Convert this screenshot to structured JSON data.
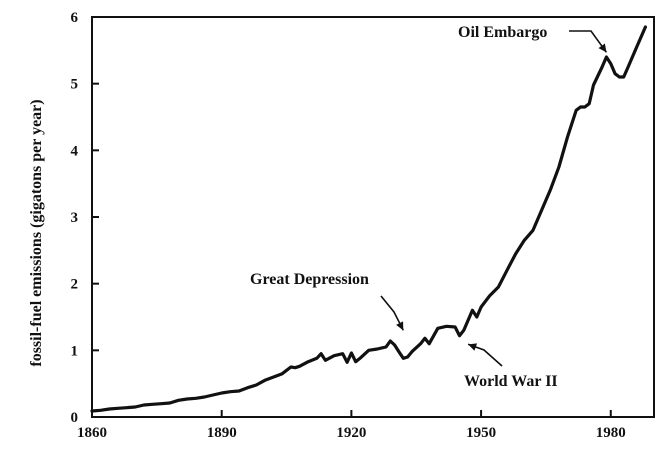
{
  "chart_data": {
    "type": "line",
    "title": "",
    "xlabel": "",
    "ylabel": "fossil-fuel emissions  (gigatons per year)",
    "xlim": [
      1860,
      1990
    ],
    "ylim": [
      0,
      6
    ],
    "xticks": [
      1860,
      1890,
      1920,
      1950,
      1980
    ],
    "yticks": [
      0,
      1,
      2,
      3,
      4,
      5,
      6
    ],
    "grid": false,
    "legend": "none",
    "series": [
      {
        "x": [
          1860,
          1862,
          1864,
          1866,
          1868,
          1870,
          1872,
          1874,
          1876,
          1878,
          1880,
          1882,
          1884,
          1886,
          1888,
          1890,
          1892,
          1894,
          1896,
          1898,
          1900,
          1902,
          1904,
          1906,
          1907,
          1908,
          1910,
          1912,
          1913,
          1914,
          1916,
          1918,
          1919,
          1920,
          1921,
          1922,
          1924,
          1926,
          1928,
          1929,
          1930,
          1931,
          1932,
          1933,
          1934,
          1936,
          1937,
          1938,
          1940,
          1942,
          1944,
          1945,
          1946,
          1948,
          1949,
          1950,
          1952,
          1954,
          1956,
          1958,
          1960,
          1962,
          1964,
          1966,
          1968,
          1970,
          1972,
          1973,
          1974,
          1975,
          1976,
          1978,
          1979,
          1980,
          1981,
          1982,
          1983,
          1984,
          1986,
          1988
        ],
        "y": [
          0.09,
          0.1,
          0.12,
          0.13,
          0.14,
          0.15,
          0.18,
          0.19,
          0.2,
          0.21,
          0.25,
          0.27,
          0.28,
          0.3,
          0.33,
          0.36,
          0.38,
          0.39,
          0.44,
          0.48,
          0.55,
          0.6,
          0.65,
          0.75,
          0.74,
          0.76,
          0.83,
          0.88,
          0.95,
          0.85,
          0.92,
          0.95,
          0.82,
          0.96,
          0.83,
          0.88,
          1.0,
          1.02,
          1.05,
          1.14,
          1.08,
          0.98,
          0.88,
          0.9,
          0.98,
          1.1,
          1.18,
          1.1,
          1.33,
          1.36,
          1.35,
          1.22,
          1.3,
          1.6,
          1.5,
          1.65,
          1.82,
          1.95,
          2.2,
          2.45,
          2.65,
          2.8,
          3.1,
          3.4,
          3.75,
          4.2,
          4.6,
          4.65,
          4.65,
          4.7,
          4.98,
          5.25,
          5.4,
          5.3,
          5.15,
          5.1,
          5.1,
          5.25,
          5.55,
          5.85
        ]
      }
    ],
    "annotations": [
      {
        "text": "Oil Embargo",
        "x": 1979,
        "y": 5.35
      },
      {
        "text": "Great Depression",
        "x": 1932,
        "y": 1.18
      },
      {
        "text": "World War II",
        "x": 1947,
        "y": 1.18
      }
    ]
  }
}
